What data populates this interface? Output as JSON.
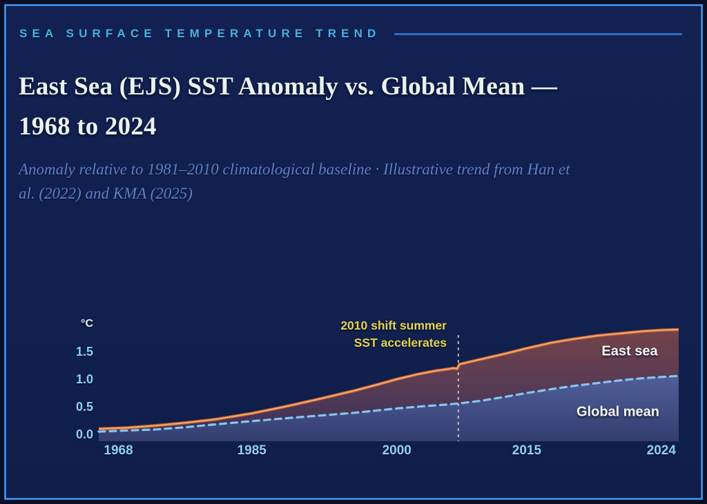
{
  "header": {
    "kicker": "SEA SURFACE TEMPERATURE TREND",
    "title_lines": [
      "East Sea (EJS) SST Anomaly vs. Global Mean —",
      "1968 to 2024"
    ],
    "subtitle_lines": [
      "Anomaly relative to 1981–2010 climatological baseline · Illustrative trend from Han et",
      "al. (2022) and KMA (2025)"
    ]
  },
  "colors": {
    "background_outer": "#0a0f26",
    "panel_background": "#11204e",
    "panel_border": "#3e87dc",
    "kicker_text": "#45b4ea",
    "kicker_rule": "#2e6cc4",
    "title_text": "#eaf2ef",
    "subtitle_text": "#5e80cc",
    "tick_text": "#8ed2f4",
    "unit_text": "#e9efe9",
    "annotation_text": "#e5d44c",
    "east_line": "#f3a86e",
    "east_line_dark": "#b85c2e",
    "global_line": "#85c6f0",
    "guide_line": "#cfcabc"
  },
  "chart_data": {
    "type": "area",
    "title": "East Sea (EJS) SST Anomaly vs. Global Mean — 1968 to 2024",
    "xlabel": "",
    "ylabel": "°C",
    "ylim": [
      0,
      2.0
    ],
    "x_range_years": [
      1968,
      2024
    ],
    "grid": false,
    "legend_position": "inline-on-areas",
    "y_ticks": [
      {
        "label": "1.5",
        "value": 1.5
      },
      {
        "label": "1.0",
        "value": 1.0
      },
      {
        "label": "0.5",
        "value": 0.5
      },
      {
        "label": "0.0",
        "value": 0.0
      }
    ],
    "x_ticks": [
      {
        "label": "1968",
        "f": 0.034
      },
      {
        "label": "1985",
        "f": 0.264
      },
      {
        "label": "2000",
        "f": 0.514
      },
      {
        "label": "2015",
        "f": 0.738
      },
      {
        "label": "2024",
        "f": 0.97
      }
    ],
    "annotation": {
      "lines": [
        "2010 shift summer",
        "SST accelerates"
      ],
      "x_fraction": 0.62,
      "marker": "vertical-dashed-line"
    },
    "key_values_degC": {
      "east_sea": {
        "1968": 0.1,
        "1985": 0.4,
        "2000": 1.0,
        "2010": 1.3,
        "2015": 1.6,
        "2024": 1.9
      },
      "global_mean": {
        "1968": 0.05,
        "1985": 0.25,
        "2000": 0.47,
        "2010": 0.56,
        "2015": 0.8,
        "2024": 1.05
      }
    },
    "series": [
      {
        "name": "East sea",
        "style": "solid",
        "points": [
          [
            0.0,
            0.1
          ],
          [
            0.05,
            0.12
          ],
          [
            0.1,
            0.16
          ],
          [
            0.15,
            0.21
          ],
          [
            0.2,
            0.27
          ],
          [
            0.264,
            0.38
          ],
          [
            0.32,
            0.5
          ],
          [
            0.38,
            0.64
          ],
          [
            0.44,
            0.79
          ],
          [
            0.48,
            0.9
          ],
          [
            0.514,
            1.0
          ],
          [
            0.55,
            1.09
          ],
          [
            0.58,
            1.15
          ],
          [
            0.6,
            1.18
          ],
          [
            0.612,
            1.2
          ],
          [
            0.618,
            1.19
          ],
          [
            0.622,
            1.27
          ],
          [
            0.65,
            1.34
          ],
          [
            0.7,
            1.46
          ],
          [
            0.738,
            1.56
          ],
          [
            0.78,
            1.66
          ],
          [
            0.82,
            1.73
          ],
          [
            0.86,
            1.79
          ],
          [
            0.9,
            1.83
          ],
          [
            0.94,
            1.87
          ],
          [
            0.97,
            1.89
          ],
          [
            1.0,
            1.9
          ]
        ]
      },
      {
        "name": "Global mean",
        "style": "dashed",
        "points": [
          [
            0.0,
            0.05
          ],
          [
            0.05,
            0.07
          ],
          [
            0.1,
            0.09
          ],
          [
            0.15,
            0.13
          ],
          [
            0.2,
            0.18
          ],
          [
            0.264,
            0.24
          ],
          [
            0.32,
            0.29
          ],
          [
            0.38,
            0.34
          ],
          [
            0.44,
            0.39
          ],
          [
            0.514,
            0.47
          ],
          [
            0.56,
            0.51
          ],
          [
            0.6,
            0.54
          ],
          [
            0.62,
            0.56
          ],
          [
            0.66,
            0.61
          ],
          [
            0.7,
            0.68
          ],
          [
            0.738,
            0.75
          ],
          [
            0.78,
            0.82
          ],
          [
            0.82,
            0.88
          ],
          [
            0.86,
            0.93
          ],
          [
            0.9,
            0.98
          ],
          [
            0.94,
            1.02
          ],
          [
            0.97,
            1.04
          ],
          [
            1.0,
            1.06
          ]
        ]
      }
    ]
  }
}
